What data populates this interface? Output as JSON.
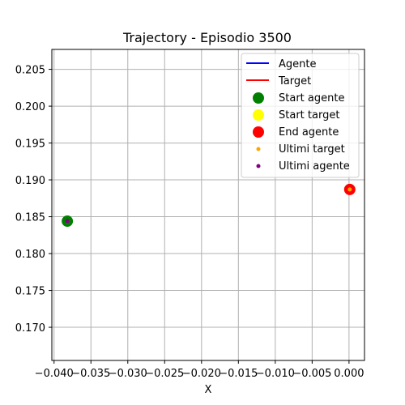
{
  "chart_data": {
    "type": "scatter",
    "title": "Trajectory - Episodio 3500",
    "xlabel": "X",
    "ylabel": "",
    "xlim": [
      -0.0403,
      0.0021
    ],
    "ylim": [
      0.1655,
      0.2077
    ],
    "grid": true,
    "legend_position": "top-right",
    "x_ticks": [
      -0.04,
      -0.035,
      -0.03,
      -0.025,
      -0.02,
      -0.015,
      -0.01,
      -0.005,
      0.0
    ],
    "x_tick_labels": [
      "−0.040",
      "−0.035",
      "−0.030",
      "−0.025",
      "−0.020",
      "−0.015",
      "−0.010",
      "−0.005",
      "0.000"
    ],
    "y_ticks": [
      0.17,
      0.175,
      0.18,
      0.185,
      0.19,
      0.195,
      0.2,
      0.205
    ],
    "y_tick_labels": [
      "0.170",
      "0.175",
      "0.180",
      "0.185",
      "0.190",
      "0.195",
      "0.200",
      "0.205"
    ],
    "series": [
      {
        "name": "Agente",
        "kind": "line",
        "color": "#0000ff",
        "x": [],
        "y": []
      },
      {
        "name": "Target",
        "kind": "line",
        "color": "#ff0000",
        "x": [],
        "y": []
      },
      {
        "name": "Start agente",
        "kind": "marker",
        "color": "#008000",
        "size": "large",
        "x": [
          -0.0382
        ],
        "y": [
          0.1844
        ]
      },
      {
        "name": "Start target",
        "kind": "marker",
        "color": "#ffff00",
        "size": "large",
        "x": [],
        "y": []
      },
      {
        "name": "End agente",
        "kind": "marker",
        "color": "#ff0000",
        "size": "large",
        "x": [
          0.0001
        ],
        "y": [
          0.1887
        ]
      },
      {
        "name": "Ultimi target",
        "kind": "marker",
        "color": "#ffa500",
        "size": "small",
        "x": [
          0.0001
        ],
        "y": [
          0.1887
        ]
      },
      {
        "name": "Ultimi agente",
        "kind": "marker",
        "color": "#800080",
        "size": "small",
        "x": [
          -0.0382
        ],
        "y": [
          0.1844
        ]
      }
    ],
    "legend": [
      {
        "label": "Agente",
        "marker": "line",
        "color": "#0000ff"
      },
      {
        "label": "Target",
        "marker": "line",
        "color": "#ff0000"
      },
      {
        "label": "Start agente",
        "marker": "big-dot",
        "color": "#008000"
      },
      {
        "label": "Start target",
        "marker": "big-dot",
        "color": "#ffff00"
      },
      {
        "label": "End agente",
        "marker": "big-dot",
        "color": "#ff0000"
      },
      {
        "label": "Ultimi target",
        "marker": "small-dot",
        "color": "#ffa500"
      },
      {
        "label": "Ultimi agente",
        "marker": "small-dot",
        "color": "#800080"
      }
    ]
  }
}
